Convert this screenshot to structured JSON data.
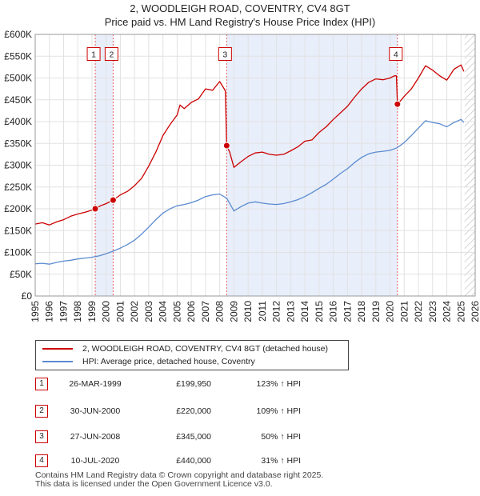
{
  "header": {
    "title": "2, WOODLEIGH ROAD, COVENTRY, CV4 8GT",
    "subtitle": "Price paid vs. HM Land Registry's House Price Index (HPI)"
  },
  "colors": {
    "price_line": "#cc0000",
    "hpi_line": "#5b8bd0",
    "shade": "#e8eefa",
    "hatch": "#aaaaaa"
  },
  "chart_data": {
    "type": "line",
    "title": "2, WOODLEIGH ROAD, COVENTRY, CV4 8GT",
    "subtitle": "Price paid vs. HM Land Registry's House Price Index (HPI)",
    "xlabel": "",
    "ylabel": "",
    "xlim": [
      1995,
      2026
    ],
    "ylim": [
      0,
      600000
    ],
    "y_ticks": [
      0,
      50000,
      100000,
      150000,
      200000,
      250000,
      300000,
      350000,
      400000,
      450000,
      500000,
      550000,
      600000
    ],
    "y_tick_labels": [
      "£0",
      "£50K",
      "£100K",
      "£150K",
      "£200K",
      "£250K",
      "£300K",
      "£350K",
      "£400K",
      "£450K",
      "£500K",
      "£550K",
      "£600K"
    ],
    "x_ticks": [
      1995,
      1996,
      1997,
      1998,
      1999,
      2000,
      2001,
      2002,
      2003,
      2004,
      2005,
      2006,
      2007,
      2008,
      2009,
      2010,
      2011,
      2012,
      2013,
      2014,
      2015,
      2016,
      2017,
      2018,
      2019,
      2020,
      2021,
      2022,
      2023,
      2024,
      2025,
      2026
    ],
    "grid": true,
    "legend_position": "below",
    "shaded_ranges": [
      [
        1999.23,
        2000.49
      ],
      [
        2008.49,
        2020.52
      ]
    ],
    "hatched_after": 2025.25,
    "series": [
      {
        "name": "2, WOODLEIGH ROAD, COVENTRY, CV4 8GT (detached house)",
        "color": "#cc0000",
        "points": [
          [
            1995.0,
            165000
          ],
          [
            1995.5,
            168000
          ],
          [
            1996.0,
            163000
          ],
          [
            1996.5,
            170000
          ],
          [
            1997.0,
            175000
          ],
          [
            1997.5,
            183000
          ],
          [
            1998.0,
            188000
          ],
          [
            1998.5,
            192000
          ],
          [
            1999.0,
            197000
          ],
          [
            1999.23,
            199950
          ],
          [
            1999.6,
            207000
          ],
          [
            2000.0,
            212000
          ],
          [
            2000.49,
            220000
          ],
          [
            2001.0,
            232000
          ],
          [
            2001.5,
            240000
          ],
          [
            2002.0,
            253000
          ],
          [
            2002.5,
            270000
          ],
          [
            2003.0,
            298000
          ],
          [
            2003.5,
            330000
          ],
          [
            2004.0,
            368000
          ],
          [
            2004.5,
            393000
          ],
          [
            2005.0,
            415000
          ],
          [
            2005.2,
            438000
          ],
          [
            2005.5,
            430000
          ],
          [
            2006.0,
            444000
          ],
          [
            2006.5,
            452000
          ],
          [
            2007.0,
            475000
          ],
          [
            2007.5,
            472000
          ],
          [
            2008.0,
            492000
          ],
          [
            2008.3,
            476000
          ],
          [
            2008.4,
            470000
          ],
          [
            2008.49,
            345000
          ],
          [
            2008.7,
            330000
          ],
          [
            2009.0,
            295000
          ],
          [
            2009.5,
            308000
          ],
          [
            2010.0,
            320000
          ],
          [
            2010.5,
            328000
          ],
          [
            2011.0,
            330000
          ],
          [
            2011.5,
            325000
          ],
          [
            2012.0,
            323000
          ],
          [
            2012.5,
            325000
          ],
          [
            2013.0,
            333000
          ],
          [
            2013.5,
            342000
          ],
          [
            2014.0,
            355000
          ],
          [
            2014.5,
            358000
          ],
          [
            2015.0,
            375000
          ],
          [
            2015.5,
            388000
          ],
          [
            2016.0,
            405000
          ],
          [
            2016.5,
            420000
          ],
          [
            2017.0,
            435000
          ],
          [
            2017.5,
            456000
          ],
          [
            2018.0,
            475000
          ],
          [
            2018.5,
            490000
          ],
          [
            2019.0,
            498000
          ],
          [
            2019.5,
            496000
          ],
          [
            2020.0,
            500000
          ],
          [
            2020.3,
            505000
          ],
          [
            2020.45,
            505000
          ],
          [
            2020.52,
            440000
          ],
          [
            2020.8,
            450000
          ],
          [
            2021.0,
            458000
          ],
          [
            2021.5,
            475000
          ],
          [
            2022.0,
            500000
          ],
          [
            2022.5,
            528000
          ],
          [
            2023.0,
            518000
          ],
          [
            2023.5,
            505000
          ],
          [
            2024.0,
            495000
          ],
          [
            2024.5,
            520000
          ],
          [
            2025.0,
            530000
          ],
          [
            2025.2,
            515000
          ]
        ]
      },
      {
        "name": "HPI: Average price, detached house, Coventry",
        "color": "#5b8bd0",
        "points": [
          [
            1995.0,
            74000
          ],
          [
            1995.5,
            75000
          ],
          [
            1996.0,
            73000
          ],
          [
            1996.5,
            77000
          ],
          [
            1997.0,
            80000
          ],
          [
            1997.5,
            82000
          ],
          [
            1998.0,
            85000
          ],
          [
            1998.5,
            87000
          ],
          [
            1999.0,
            89000
          ],
          [
            1999.5,
            92000
          ],
          [
            2000.0,
            97000
          ],
          [
            2000.5,
            103000
          ],
          [
            2001.0,
            110000
          ],
          [
            2001.5,
            118000
          ],
          [
            2002.0,
            128000
          ],
          [
            2002.5,
            142000
          ],
          [
            2003.0,
            158000
          ],
          [
            2003.5,
            175000
          ],
          [
            2004.0,
            190000
          ],
          [
            2004.5,
            200000
          ],
          [
            2005.0,
            207000
          ],
          [
            2005.5,
            210000
          ],
          [
            2006.0,
            214000
          ],
          [
            2006.5,
            220000
          ],
          [
            2007.0,
            228000
          ],
          [
            2007.5,
            232000
          ],
          [
            2008.0,
            234000
          ],
          [
            2008.5,
            224000
          ],
          [
            2009.0,
            195000
          ],
          [
            2009.5,
            205000
          ],
          [
            2010.0,
            213000
          ],
          [
            2010.5,
            216000
          ],
          [
            2011.0,
            213000
          ],
          [
            2011.5,
            211000
          ],
          [
            2012.0,
            210000
          ],
          [
            2012.5,
            212000
          ],
          [
            2013.0,
            216000
          ],
          [
            2013.5,
            221000
          ],
          [
            2014.0,
            228000
          ],
          [
            2014.5,
            237000
          ],
          [
            2015.0,
            247000
          ],
          [
            2015.5,
            256000
          ],
          [
            2016.0,
            268000
          ],
          [
            2016.5,
            281000
          ],
          [
            2017.0,
            292000
          ],
          [
            2017.5,
            306000
          ],
          [
            2018.0,
            318000
          ],
          [
            2018.5,
            326000
          ],
          [
            2019.0,
            330000
          ],
          [
            2019.5,
            332000
          ],
          [
            2020.0,
            334000
          ],
          [
            2020.5,
            340000
          ],
          [
            2021.0,
            352000
          ],
          [
            2021.5,
            368000
          ],
          [
            2022.0,
            385000
          ],
          [
            2022.5,
            402000
          ],
          [
            2023.0,
            398000
          ],
          [
            2023.5,
            395000
          ],
          [
            2024.0,
            388000
          ],
          [
            2024.5,
            398000
          ],
          [
            2025.0,
            405000
          ],
          [
            2025.2,
            398000
          ]
        ]
      }
    ],
    "sales": [
      {
        "label": "1",
        "x": 1999.23,
        "y": 199950,
        "label_y": 555000
      },
      {
        "label": "2",
        "x": 2000.49,
        "y": 220000,
        "label_y": 555000
      },
      {
        "label": "3",
        "x": 2008.49,
        "y": 345000,
        "label_y": 555000
      },
      {
        "label": "4",
        "x": 2020.52,
        "y": 440000,
        "label_y": 555000
      }
    ]
  },
  "legend": {
    "items": [
      {
        "label": "2, WOODLEIGH ROAD, COVENTRY, CV4 8GT (detached house)",
        "color": "#cc0000"
      },
      {
        "label": "HPI: Average price, detached house, Coventry",
        "color": "#5b8bd0"
      }
    ]
  },
  "sales_table": [
    {
      "num": "1",
      "date": "26-MAR-1999",
      "price": "£199,950",
      "pct": "123% ↑ HPI"
    },
    {
      "num": "2",
      "date": "30-JUN-2000",
      "price": "£220,000",
      "pct": "109% ↑ HPI"
    },
    {
      "num": "3",
      "date": "27-JUN-2008",
      "price": "£345,000",
      "pct": "50% ↑ HPI"
    },
    {
      "num": "4",
      "date": "10-JUL-2020",
      "price": "£440,000",
      "pct": "31% ↑ HPI"
    }
  ],
  "footer": {
    "line1": "Contains HM Land Registry data © Crown copyright and database right 2025.",
    "line2": "This data is licensed under the Open Government Licence v3.0."
  }
}
